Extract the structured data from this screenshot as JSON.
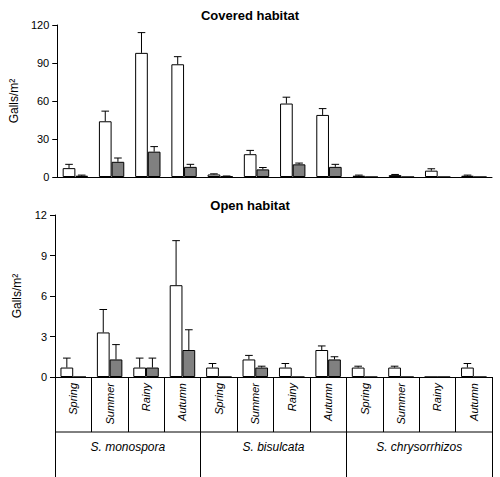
{
  "chart_data": [
    {
      "type": "bar",
      "title": "Covered habitat",
      "y_label": "Galls/m²",
      "categories": [
        "Spring",
        "Summer",
        "Rainy",
        "Autumn",
        "Spring",
        "Summer",
        "Rainy",
        "Autumn",
        "Spring",
        "Summer",
        "Rainy",
        "Autumn"
      ],
      "series": [
        {
          "color": "#ffffff",
          "values": [
            7,
            44,
            98,
            89,
            2,
            18,
            58,
            49,
            1,
            1.5,
            5,
            1
          ],
          "errors": [
            3,
            8,
            16,
            6,
            0.5,
            3,
            5,
            5,
            0.5,
            0.5,
            1.5,
            0.5
          ]
        },
        {
          "color": "#808080",
          "values": [
            1,
            12,
            20,
            8,
            0.5,
            6,
            10,
            8,
            0,
            0,
            0,
            0
          ],
          "errors": [
            0.5,
            3,
            4,
            2,
            0.3,
            1.5,
            1,
            2,
            0,
            0,
            0,
            0
          ]
        }
      ],
      "ylim": [
        0,
        120
      ],
      "yticks": [
        0,
        30,
        60,
        90,
        120
      ],
      "tick_labels": "y",
      "grid": false
    },
    {
      "type": "bar",
      "title": "Open habitat",
      "y_label": "Galls/m²",
      "categories": [
        "Spring",
        "Summer",
        "Rainy",
        "Autumn",
        "Spring",
        "Summer",
        "Rainy",
        "Autumn",
        "Spring",
        "Summer",
        "Rainy",
        "Autumn"
      ],
      "groups": [
        "S. monospora",
        "S. bisulcata",
        "S. chrysorrhizos"
      ],
      "series": [
        {
          "color": "#ffffff",
          "values": [
            0.7,
            3.3,
            0.7,
            6.8,
            0.7,
            1.3,
            0.7,
            2.0,
            0.7,
            0.7,
            0,
            0.7
          ],
          "errors": [
            0.7,
            1.7,
            0.7,
            3.3,
            0.3,
            0.3,
            0.3,
            0.3,
            0.1,
            0.1,
            0,
            0.3
          ]
        },
        {
          "color": "#808080",
          "values": [
            0,
            1.3,
            0.7,
            2.0,
            0,
            0.7,
            0,
            1.3,
            0,
            0,
            0,
            0
          ],
          "errors": [
            0,
            1.1,
            0.7,
            1.5,
            0,
            0.1,
            0,
            0.2,
            0,
            0,
            0,
            0
          ]
        }
      ],
      "ylim": [
        0,
        12
      ],
      "yticks": [
        0,
        3,
        6,
        9,
        12
      ],
      "grid": false
    }
  ]
}
